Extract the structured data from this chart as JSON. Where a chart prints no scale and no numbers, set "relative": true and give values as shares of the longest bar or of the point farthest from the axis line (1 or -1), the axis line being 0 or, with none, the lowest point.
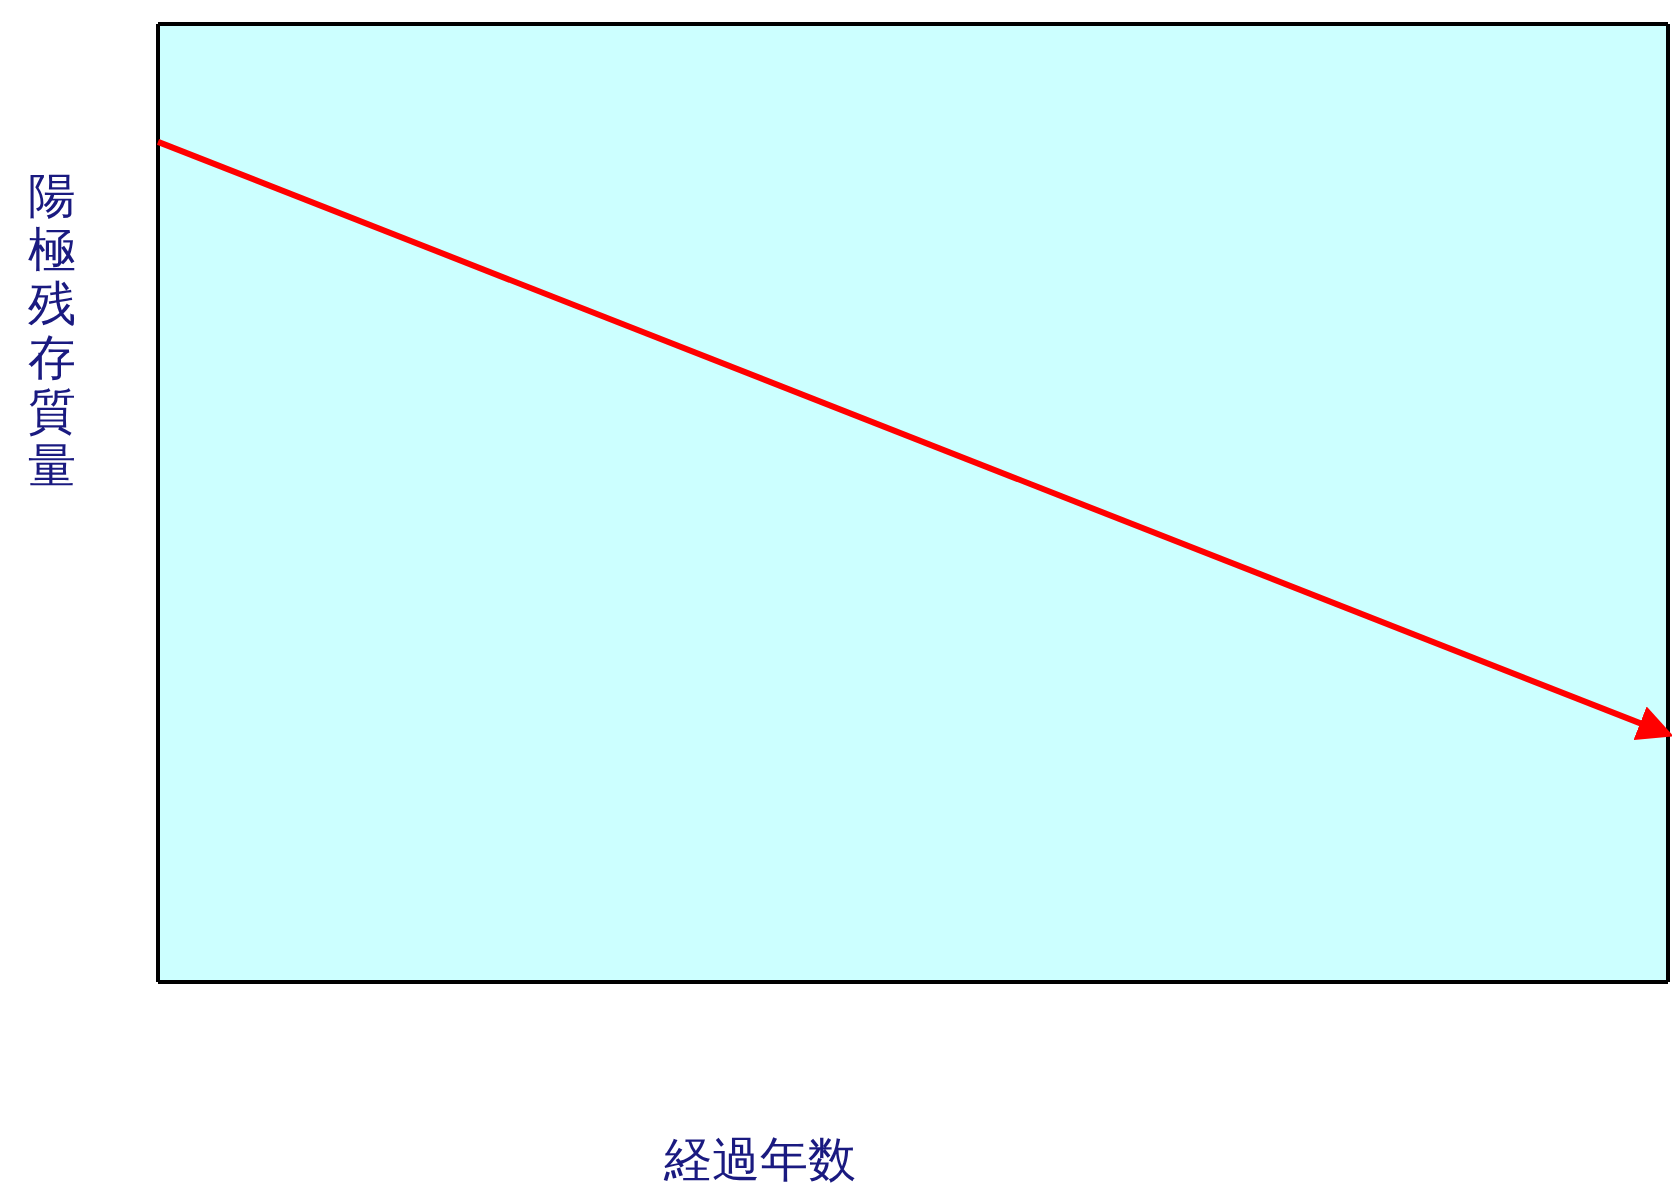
{
  "chart_data": {
    "type": "line",
    "relative": true,
    "xlabel": "経過年数",
    "ylabel": "陽極残存質量",
    "categories": [
      null,
      null
    ],
    "series": [
      {
        "color": "#ff0000",
        "values": [
          1,
          0.295
        ]
      }
    ]
  }
}
